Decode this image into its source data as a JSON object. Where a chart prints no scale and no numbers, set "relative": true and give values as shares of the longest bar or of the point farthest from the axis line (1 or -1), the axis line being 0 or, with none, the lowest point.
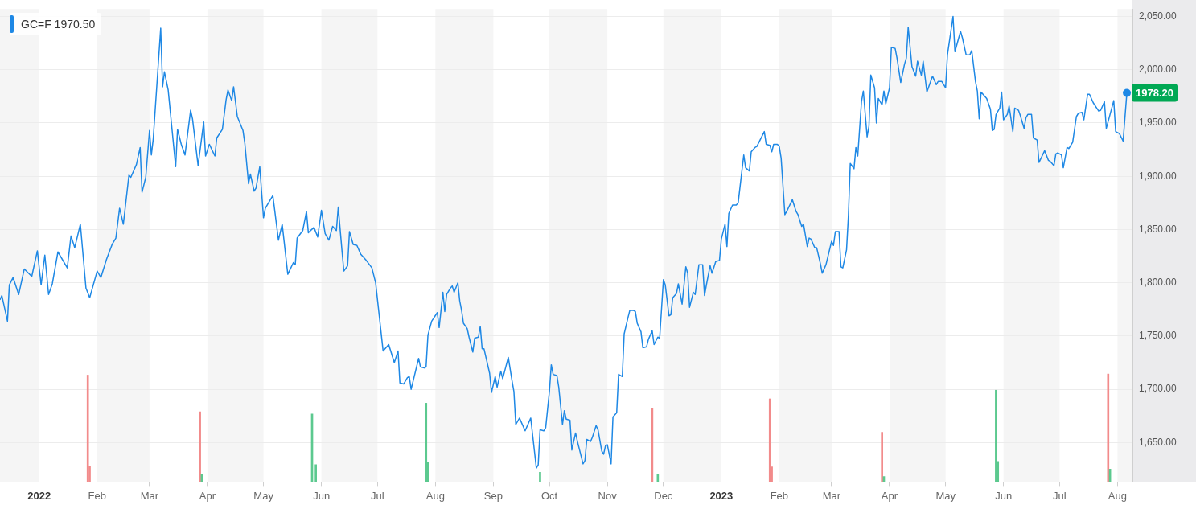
{
  "chart_data": [
    {
      "type": "line",
      "xlim": [
        "2021-12-11",
        "2023-08-09"
      ],
      "xticks": [
        {
          "value": "2022-01-01",
          "label": "2022"
        },
        {
          "value": "2022-02-01",
          "label": "Feb"
        },
        {
          "value": "2022-03-01",
          "label": "Mar"
        },
        {
          "value": "2022-04-01",
          "label": "Apr"
        },
        {
          "value": "2022-05-01",
          "label": "May"
        },
        {
          "value": "2022-06-01",
          "label": "Jun"
        },
        {
          "value": "2022-07-01",
          "label": "Jul"
        },
        {
          "value": "2022-08-01",
          "label": "Aug"
        },
        {
          "value": "2022-09-01",
          "label": "Sep"
        },
        {
          "value": "2022-10-01",
          "label": "Oct"
        },
        {
          "value": "2022-11-01",
          "label": "Nov"
        },
        {
          "value": "2022-12-01",
          "label": "Dec"
        },
        {
          "value": "2023-01-01",
          "label": "2023"
        },
        {
          "value": "2023-02-01",
          "label": "Feb"
        },
        {
          "value": "2023-03-01",
          "label": "Mar"
        },
        {
          "value": "2023-04-01",
          "label": "Apr"
        },
        {
          "value": "2023-05-01",
          "label": "May"
        },
        {
          "value": "2023-06-01",
          "label": "Jun"
        },
        {
          "value": "2023-07-01",
          "label": "Jul"
        },
        {
          "value": "2023-08-01",
          "label": "Aug"
        }
      ],
      "ylim": [
        1613,
        2057
      ],
      "yticks": [
        {
          "value": 1650,
          "label": "1,650.00"
        },
        {
          "value": 1700,
          "label": "1,700.00"
        },
        {
          "value": 1750,
          "label": "1,750.00"
        },
        {
          "value": 1800,
          "label": "1,800.00"
        },
        {
          "value": 1850,
          "label": "1,850.00"
        },
        {
          "value": 1900,
          "label": "1,900.00"
        },
        {
          "value": 1950,
          "label": "1,950.00"
        },
        {
          "value": 2000,
          "label": "2,000.00"
        },
        {
          "value": 2050,
          "label": "2,050.00"
        }
      ],
      "grid": "y",
      "legend": "top left",
      "series": [
        {
          "name": "GC=F 1970.50",
          "color": "#1e88e5",
          "x": [
            "2021-12-11",
            "2021-12-12",
            "2021-12-15",
            "2021-12-16",
            "2021-12-18",
            "2021-12-21",
            "2021-12-24",
            "2021-12-28",
            "2021-12-31",
            "2022-01-02",
            "2022-01-04",
            "2022-01-06",
            "2022-01-08",
            "2022-01-11",
            "2022-01-16",
            "2022-01-18",
            "2022-01-20",
            "2022-01-23",
            "2022-01-26",
            "2022-01-28",
            "2022-02-01",
            "2022-02-03",
            "2022-02-06",
            "2022-02-09",
            "2022-02-11",
            "2022-02-13",
            "2022-02-15",
            "2022-02-18",
            "2022-02-19",
            "2022-02-22",
            "2022-02-24",
            "2022-02-25",
            "2022-02-27",
            "2022-03-01",
            "2022-03-02",
            "2022-03-03",
            "2022-03-07",
            "2022-03-08",
            "2022-03-09",
            "2022-03-11",
            "2022-03-15",
            "2022-03-16",
            "2022-03-18",
            "2022-03-20",
            "2022-03-23",
            "2022-03-24",
            "2022-03-27",
            "2022-03-30",
            "2022-03-31",
            "2022-04-02",
            "2022-04-05",
            "2022-04-06",
            "2022-04-09",
            "2022-04-11",
            "2022-04-12",
            "2022-04-14",
            "2022-04-15",
            "2022-04-17",
            "2022-04-20",
            "2022-04-21",
            "2022-04-23",
            "2022-04-24",
            "2022-04-26",
            "2022-04-27",
            "2022-04-29",
            "2022-05-01",
            "2022-05-02",
            "2022-05-06",
            "2022-05-09",
            "2022-05-11",
            "2022-05-14",
            "2022-05-17",
            "2022-05-18",
            "2022-05-19",
            "2022-05-22",
            "2022-05-24",
            "2022-05-25",
            "2022-05-28",
            "2022-05-30",
            "2022-06-01",
            "2022-06-03",
            "2022-06-05",
            "2022-06-07",
            "2022-06-09",
            "2022-06-10",
            "2022-06-12",
            "2022-06-13",
            "2022-06-15",
            "2022-06-16",
            "2022-06-18",
            "2022-06-20",
            "2022-06-22",
            "2022-06-25",
            "2022-06-28",
            "2022-06-30",
            "2022-07-04",
            "2022-07-07",
            "2022-07-10",
            "2022-07-12",
            "2022-07-13",
            "2022-07-15",
            "2022-07-17",
            "2022-07-18",
            "2022-07-19",
            "2022-07-23",
            "2022-07-24",
            "2022-07-26",
            "2022-07-27",
            "2022-07-28",
            "2022-07-30",
            "2022-08-02",
            "2022-08-03",
            "2022-08-05",
            "2022-08-06",
            "2022-08-07",
            "2022-08-09",
            "2022-08-10",
            "2022-08-11",
            "2022-08-13",
            "2022-08-14",
            "2022-08-15",
            "2022-08-16",
            "2022-08-18",
            "2022-08-19",
            "2022-08-21",
            "2022-08-22",
            "2022-08-24",
            "2022-08-25",
            "2022-08-26",
            "2022-08-27",
            "2022-08-30",
            "2022-08-31",
            "2022-09-02",
            "2022-09-03",
            "2022-09-05",
            "2022-09-06",
            "2022-09-09",
            "2022-09-11",
            "2022-09-12",
            "2022-09-13",
            "2022-09-15",
            "2022-09-18",
            "2022-09-21",
            "2022-09-24",
            "2022-09-25",
            "2022-09-26",
            "2022-09-28",
            "2022-09-29",
            "2022-10-01",
            "2022-10-02",
            "2022-10-03",
            "2022-10-05",
            "2022-10-06",
            "2022-10-08",
            "2022-10-09",
            "2022-10-10",
            "2022-10-12",
            "2022-10-13",
            "2022-10-15",
            "2022-10-16",
            "2022-10-19",
            "2022-10-20",
            "2022-10-21",
            "2022-10-23",
            "2022-10-24",
            "2022-10-26",
            "2022-10-27",
            "2022-10-29",
            "2022-10-30",
            "2022-10-31",
            "2022-11-01",
            "2022-11-03",
            "2022-11-04",
            "2022-11-06",
            "2022-11-07",
            "2022-11-09",
            "2022-11-10",
            "2022-11-12",
            "2022-11-13",
            "2022-11-15",
            "2022-11-16",
            "2022-11-17",
            "2022-11-19",
            "2022-11-20",
            "2022-11-22",
            "2022-11-23",
            "2022-11-25",
            "2022-11-26",
            "2022-11-28",
            "2022-11-29",
            "2022-12-01",
            "2022-12-02",
            "2022-12-04",
            "2022-12-05",
            "2022-12-06",
            "2022-12-08",
            "2022-12-09",
            "2022-12-11",
            "2022-12-13",
            "2022-12-14",
            "2022-12-15",
            "2022-12-17",
            "2022-12-18",
            "2022-12-20",
            "2022-12-22",
            "2022-12-23",
            "2022-12-24",
            "2022-12-26",
            "2022-12-27",
            "2022-12-29",
            "2022-12-31",
            "2023-01-01",
            "2023-01-03",
            "2023-01-04",
            "2023-01-05",
            "2023-01-07",
            "2023-01-09",
            "2023-01-10",
            "2023-01-13",
            "2023-01-14",
            "2023-01-16",
            "2023-01-17",
            "2023-01-19",
            "2023-01-20",
            "2023-01-24",
            "2023-01-25",
            "2023-01-27",
            "2023-01-28",
            "2023-01-29",
            "2023-01-31",
            "2023-02-01",
            "2023-02-02",
            "2023-02-04",
            "2023-02-05",
            "2023-02-08",
            "2023-02-10",
            "2023-02-11",
            "2023-02-13",
            "2023-02-14",
            "2023-02-16",
            "2023-02-17",
            "2023-02-18",
            "2023-02-20",
            "2023-02-21",
            "2023-02-23",
            "2023-02-24",
            "2023-02-26",
            "2023-03-01",
            "2023-03-02",
            "2023-03-03",
            "2023-03-05",
            "2023-03-06",
            "2023-03-07",
            "2023-03-09",
            "2023-03-10",
            "2023-03-11",
            "2023-03-13",
            "2023-03-14",
            "2023-03-15",
            "2023-03-17",
            "2023-03-18",
            "2023-03-20",
            "2023-03-21",
            "2023-03-22",
            "2023-03-24",
            "2023-03-25",
            "2023-03-26",
            "2023-03-28",
            "2023-03-29",
            "2023-03-30",
            "2023-04-01",
            "2023-04-02",
            "2023-04-04",
            "2023-04-05",
            "2023-04-07",
            "2023-04-09",
            "2023-04-10",
            "2023-04-11",
            "2023-04-13",
            "2023-04-15",
            "2023-04-16",
            "2023-04-18",
            "2023-04-19",
            "2023-04-21",
            "2023-04-23",
            "2023-04-24",
            "2023-04-26",
            "2023-04-27",
            "2023-04-29",
            "2023-05-01",
            "2023-05-02",
            "2023-05-05",
            "2023-05-06",
            "2023-05-09",
            "2023-05-10",
            "2023-05-12",
            "2023-05-14",
            "2023-05-15",
            "2023-05-17",
            "2023-05-18",
            "2023-05-19",
            "2023-05-20",
            "2023-05-23",
            "2023-05-25",
            "2023-05-26",
            "2023-05-27",
            "2023-05-28",
            "2023-05-30",
            "2023-05-31",
            "2023-06-01",
            "2023-06-03",
            "2023-06-04",
            "2023-06-06",
            "2023-06-07",
            "2023-06-09",
            "2023-06-10",
            "2023-06-12",
            "2023-06-13",
            "2023-06-14",
            "2023-06-16",
            "2023-06-17",
            "2023-06-19",
            "2023-06-20",
            "2023-06-23",
            "2023-06-25",
            "2023-06-26",
            "2023-06-28",
            "2023-06-29",
            "2023-06-30",
            "2023-07-02",
            "2023-07-03",
            "2023-07-05",
            "2023-07-06",
            "2023-07-08",
            "2023-07-10",
            "2023-07-11",
            "2023-07-13",
            "2023-07-14",
            "2023-07-16",
            "2023-07-17",
            "2023-07-19",
            "2023-07-22",
            "2023-07-23",
            "2023-07-25",
            "2023-07-26",
            "2023-07-28",
            "2023-07-30",
            "2023-07-31",
            "2023-08-02",
            "2023-08-04",
            "2023-08-06"
          ],
          "values": [
            1784,
            1788,
            1764,
            1798,
            1805,
            1789,
            1813,
            1806,
            1830,
            1798,
            1826,
            1789,
            1799,
            1829,
            1814,
            1844,
            1833,
            1855,
            1795,
            1786,
            1811,
            1805,
            1822,
            1836,
            1842,
            1870,
            1855,
            1901,
            1899,
            1911,
            1927,
            1885,
            1899,
            1943,
            1920,
            1935,
            2039,
            1984,
            1998,
            1981,
            1909,
            1944,
            1930,
            1920,
            1962,
            1954,
            1910,
            1951,
            1919,
            1930,
            1919,
            1936,
            1944,
            1972,
            1981,
            1971,
            1984,
            1956,
            1943,
            1931,
            1893,
            1902,
            1886,
            1889,
            1909,
            1861,
            1870,
            1882,
            1840,
            1855,
            1808,
            1819,
            1817,
            1842,
            1849,
            1867,
            1847,
            1852,
            1843,
            1868,
            1846,
            1840,
            1853,
            1849,
            1871,
            1830,
            1811,
            1816,
            1848,
            1836,
            1835,
            1827,
            1821,
            1814,
            1800,
            1736,
            1742,
            1725,
            1736,
            1706,
            1705,
            1711,
            1712,
            1700,
            1729,
            1721,
            1720,
            1721,
            1751,
            1764,
            1772,
            1758,
            1791,
            1773,
            1789,
            1795,
            1797,
            1791,
            1800,
            1783,
            1774,
            1762,
            1757,
            1749,
            1735,
            1748,
            1749,
            1759,
            1738,
            1738,
            1715,
            1697,
            1712,
            1702,
            1717,
            1710,
            1730,
            1708,
            1698,
            1667,
            1673,
            1661,
            1673,
            1626,
            1629,
            1662,
            1661,
            1664,
            1698,
            1723,
            1714,
            1713,
            1702,
            1667,
            1680,
            1672,
            1671,
            1643,
            1659,
            1651,
            1630,
            1633,
            1653,
            1651,
            1655,
            1666,
            1662,
            1642,
            1639,
            1647,
            1648,
            1630,
            1674,
            1678,
            1714,
            1712,
            1752,
            1767,
            1774,
            1774,
            1773,
            1762,
            1754,
            1739,
            1740,
            1747,
            1755,
            1742,
            1749,
            1748,
            1803,
            1798,
            1769,
            1770,
            1786,
            1790,
            1799,
            1780,
            1815,
            1809,
            1777,
            1791,
            1789,
            1817,
            1817,
            1788,
            1798,
            1816,
            1809,
            1820,
            1821,
            1841,
            1855,
            1834,
            1865,
            1873,
            1873,
            1875,
            1920,
            1908,
            1905,
            1923,
            1927,
            1928,
            1942,
            1930,
            1929,
            1923,
            1930,
            1930,
            1928,
            1917,
            1864,
            1867,
            1878,
            1867,
            1864,
            1853,
            1855,
            1834,
            1842,
            1841,
            1833,
            1833,
            1818,
            1809,
            1817,
            1839,
            1835,
            1848,
            1848,
            1815,
            1814,
            1831,
            1863,
            1912,
            1907,
            1927,
            1919,
            1970,
            1980,
            1937,
            1947,
            1995,
            1983,
            1950,
            1973,
            1967,
            1980,
            1968,
            1983,
            2021,
            2020,
            2011,
            1988,
            2005,
            2011,
            2040,
            2003,
            1994,
            2008,
            1995,
            2008,
            1979,
            1989,
            1994,
            1986,
            1989,
            1989,
            1983,
            2014,
            2050,
            2017,
            2036,
            2030,
            2014,
            2014,
            2018,
            1989,
            1980,
            1954,
            1979,
            1973,
            1963,
            1943,
            1944,
            1958,
            1964,
            1979,
            1953,
            1958,
            1966,
            1942,
            1964,
            1962,
            1957,
            1945,
            1955,
            1958,
            1958,
            1936,
            1934,
            1913,
            1924,
            1915,
            1914,
            1910,
            1921,
            1922,
            1920,
            1908,
            1927,
            1926,
            1932,
            1956,
            1959,
            1960,
            1953,
            1977,
            1977,
            1969,
            1961,
            1962,
            1970,
            1945,
            1958,
            1971,
            1942,
            1940,
            1933,
            1978.2
          ]
        }
      ],
      "bands": [
        {
          "axis": "x",
          "from": "2021-12-11",
          "to": "2022-01-01",
          "color": "#f5f5f5"
        },
        {
          "axis": "x",
          "from": "2022-02-01",
          "to": "2022-03-01",
          "color": "#f5f5f5"
        },
        {
          "axis": "x",
          "from": "2022-04-01",
          "to": "2022-05-01",
          "color": "#f5f5f5"
        },
        {
          "axis": "x",
          "from": "2022-06-01",
          "to": "2022-07-01",
          "color": "#f5f5f5"
        },
        {
          "axis": "x",
          "from": "2022-08-01",
          "to": "2022-09-01",
          "color": "#f5f5f5"
        },
        {
          "axis": "x",
          "from": "2022-10-01",
          "to": "2022-11-01",
          "color": "#f5f5f5"
        },
        {
          "axis": "x",
          "from": "2022-12-01",
          "to": "2023-01-01",
          "color": "#f5f5f5"
        },
        {
          "axis": "x",
          "from": "2023-02-01",
          "to": "2023-03-01",
          "color": "#f5f5f5"
        },
        {
          "axis": "x",
          "from": "2023-04-01",
          "to": "2023-05-01",
          "color": "#f5f5f5"
        },
        {
          "axis": "x",
          "from": "2023-06-01",
          "to": "2023-07-01",
          "color": "#f5f5f5"
        },
        {
          "axis": "x",
          "from": "2023-08-01",
          "to": "2023-08-09",
          "color": "#f5f5f5"
        }
      ],
      "annotations": [
        {
          "text": "1978.20",
          "x": "2023-08-06",
          "y": 1978.2
        }
      ]
    },
    {
      "type": "bar",
      "relative": true,
      "tick_labels": false,
      "xlim": [
        "2021-12-11",
        "2023-08-09"
      ],
      "x": [
        "2022-01-27",
        "2022-01-28",
        "2022-03-28",
        "2022-03-29",
        "2022-05-27",
        "2022-05-29",
        "2022-07-27",
        "2022-07-28",
        "2022-09-26",
        "2022-11-25",
        "2022-11-28",
        "2023-01-27",
        "2023-01-28",
        "2023-03-28",
        "2023-03-29",
        "2023-05-28",
        "2023-05-29",
        "2023-07-27",
        "2023-07-28"
      ],
      "values": [
        0.99,
        0.15,
        0.65,
        0.07,
        0.63,
        0.16,
        0.73,
        0.18,
        0.09,
        0.68,
        0.07,
        0.77,
        0.14,
        0.46,
        0.05,
        0.85,
        0.19,
        1,
        0.12
      ],
      "colors": [
        "#f28b8b",
        "#f28b8b",
        "#f28b8b",
        "#5cc98f",
        "#5cc98f",
        "#5cc98f",
        "#5cc98f",
        "#5cc98f",
        "#5cc98f",
        "#f28b8b",
        "#5cc98f",
        "#f28b8b",
        "#f28b8b",
        "#f28b8b",
        "#5cc98f",
        "#5cc98f",
        "#5cc98f",
        "#f28b8b",
        "#5cc98f"
      ]
    }
  ]
}
